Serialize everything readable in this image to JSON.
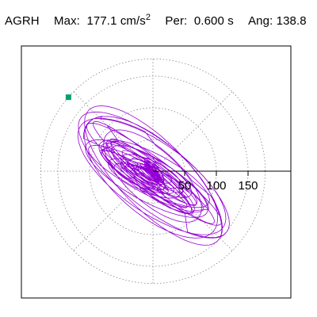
{
  "header": {
    "station": "AGRH",
    "max_label": "Max:",
    "max_value": "177.1",
    "max_unit": "cm/s",
    "max_exponent": "2",
    "period_label": "Per:",
    "period_value": "0.600",
    "period_unit": "s",
    "angle_label": "Ang:",
    "angle_value": "138.8"
  },
  "chart_data": {
    "type": "polar-orbit",
    "radial_ticks": [
      50,
      100,
      150
    ],
    "radial_max": 177.1,
    "radial_gridlines": [
      50,
      100,
      150
    ],
    "spoke_angles_deg": [
      0,
      45,
      90,
      135,
      180,
      225,
      270,
      315
    ],
    "major_axis_angle_deg": 138.8,
    "peak_marker": {
      "r": 177.1,
      "angle_deg": 138.8,
      "color": "#00a070"
    },
    "trace_color": "#9400d3",
    "grid_color": "#888888"
  }
}
